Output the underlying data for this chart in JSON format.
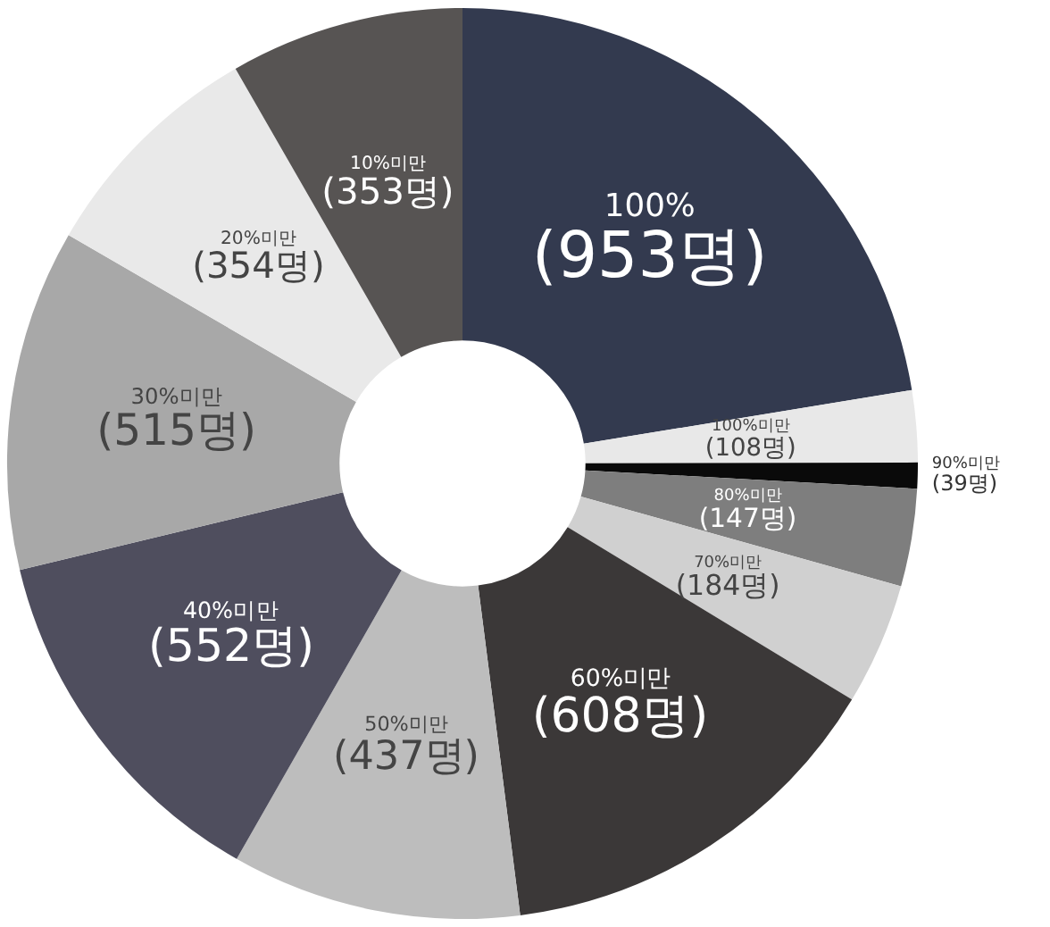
{
  "chart_data": {
    "type": "donut",
    "categories": [
      "100%",
      "100%미만",
      "90%미만",
      "80%미만",
      "70%미만",
      "60%미만",
      "50%미만",
      "40%미만",
      "30%미만",
      "20%미만",
      "10%미만"
    ],
    "values": [
      953,
      108,
      39,
      147,
      184,
      608,
      437,
      552,
      515,
      354,
      353
    ],
    "value_labels": [
      "(953명)",
      "(108명)",
      "(39명)",
      "(147명)",
      "(184명)",
      "(608명)",
      "(437명)",
      "(552명)",
      "(515명)",
      "(354명)",
      "(353명)"
    ],
    "colors": [
      "#333a4f",
      "#e8e8e8",
      "#0a0a0a",
      "#7e7e7e",
      "#d0d0d0",
      "#3b3838",
      "#bdbdbd",
      "#4f4e5e",
      "#a8a8a8",
      "#e9e9e9",
      "#575453"
    ],
    "legend": false
  }
}
